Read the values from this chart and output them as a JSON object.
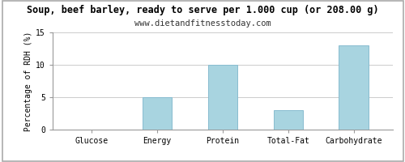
{
  "title": "Soup, beef barley, ready to serve per 1.000 cup (or 208.00 g)",
  "subtitle": "www.dietandfitnesstoday.com",
  "categories": [
    "Glucose",
    "Energy",
    "Protein",
    "Total-Fat",
    "Carbohydrate"
  ],
  "values": [
    0,
    5,
    10,
    3,
    13
  ],
  "bar_color": "#a8d4e0",
  "bar_edge_color": "#88bcd0",
  "ylabel": "Percentage of RDH (%)",
  "ylim": [
    0,
    15
  ],
  "yticks": [
    0,
    5,
    10,
    15
  ],
  "background_color": "#ffffff",
  "grid_color": "#cccccc",
  "title_fontsize": 8.5,
  "subtitle_fontsize": 7.5,
  "tick_fontsize": 7,
  "ylabel_fontsize": 7,
  "border_color": "#aaaaaa"
}
